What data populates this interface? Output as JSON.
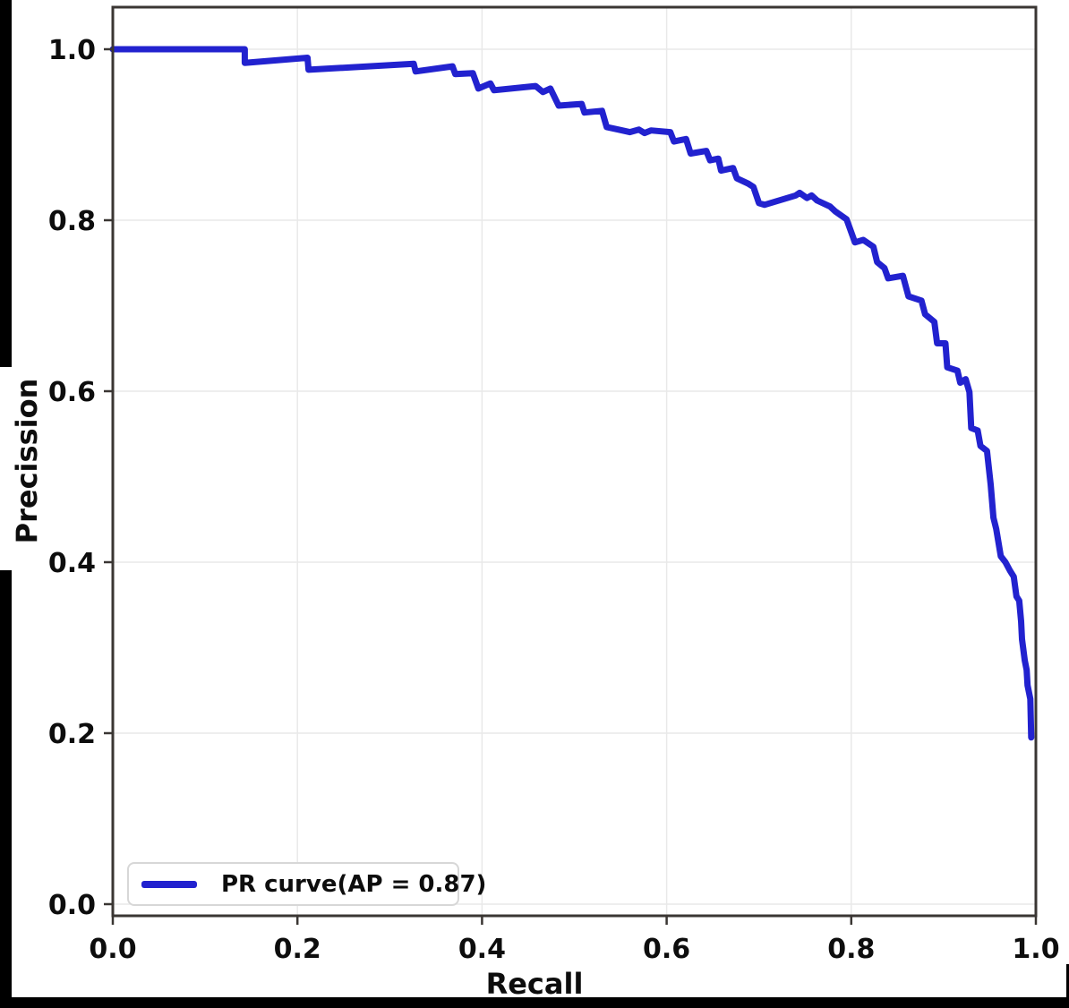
{
  "chart_data": {
    "type": "line",
    "title": "",
    "xlabel": "Recall",
    "ylabel": "Precission",
    "xlim": [
      0.0,
      1.0
    ],
    "ylim": [
      0.0,
      1.05
    ],
    "x_ticks": [
      "0.0",
      "0.2",
      "0.4",
      "0.6",
      "0.8",
      "1.0"
    ],
    "y_ticks": [
      "0.0",
      "0.2",
      "0.4",
      "0.6",
      "0.8",
      "1.0"
    ],
    "grid": true,
    "legend": {
      "position": "lower left",
      "label": "PR curve(AP = 0.87)"
    },
    "series": [
      {
        "name": "PR curve",
        "ap": 0.87,
        "color": "#2222cf",
        "points": [
          [
            0.0,
            1.0
          ],
          [
            0.143,
            1.0
          ],
          [
            0.143,
            0.984
          ],
          [
            0.211,
            0.99
          ],
          [
            0.212,
            0.976
          ],
          [
            0.326,
            0.983
          ],
          [
            0.328,
            0.974
          ],
          [
            0.368,
            0.98
          ],
          [
            0.371,
            0.971
          ],
          [
            0.39,
            0.972
          ],
          [
            0.396,
            0.954
          ],
          [
            0.409,
            0.96
          ],
          [
            0.413,
            0.952
          ],
          [
            0.458,
            0.957
          ],
          [
            0.466,
            0.95
          ],
          [
            0.474,
            0.954
          ],
          [
            0.483,
            0.934
          ],
          [
            0.508,
            0.936
          ],
          [
            0.511,
            0.926
          ],
          [
            0.53,
            0.928
          ],
          [
            0.535,
            0.909
          ],
          [
            0.548,
            0.906
          ],
          [
            0.56,
            0.903
          ],
          [
            0.57,
            0.906
          ],
          [
            0.576,
            0.902
          ],
          [
            0.583,
            0.905
          ],
          [
            0.604,
            0.903
          ],
          [
            0.608,
            0.892
          ],
          [
            0.621,
            0.895
          ],
          [
            0.626,
            0.878
          ],
          [
            0.643,
            0.881
          ],
          [
            0.647,
            0.87
          ],
          [
            0.656,
            0.872
          ],
          [
            0.659,
            0.858
          ],
          [
            0.672,
            0.861
          ],
          [
            0.676,
            0.849
          ],
          [
            0.688,
            0.843
          ],
          [
            0.694,
            0.839
          ],
          [
            0.7,
            0.82
          ],
          [
            0.706,
            0.818
          ],
          [
            0.74,
            0.829
          ],
          [
            0.744,
            0.832
          ],
          [
            0.752,
            0.826
          ],
          [
            0.757,
            0.829
          ],
          [
            0.763,
            0.823
          ],
          [
            0.777,
            0.816
          ],
          [
            0.783,
            0.81
          ],
          [
            0.795,
            0.801
          ],
          [
            0.804,
            0.774
          ],
          [
            0.813,
            0.777
          ],
          [
            0.824,
            0.769
          ],
          [
            0.828,
            0.751
          ],
          [
            0.836,
            0.744
          ],
          [
            0.84,
            0.732
          ],
          [
            0.856,
            0.735
          ],
          [
            0.862,
            0.711
          ],
          [
            0.876,
            0.706
          ],
          [
            0.88,
            0.69
          ],
          [
            0.89,
            0.681
          ],
          [
            0.893,
            0.656
          ],
          [
            0.902,
            0.656
          ],
          [
            0.904,
            0.628
          ],
          [
            0.915,
            0.624
          ],
          [
            0.918,
            0.61
          ],
          [
            0.924,
            0.614
          ],
          [
            0.928,
            0.599
          ],
          [
            0.93,
            0.557
          ],
          [
            0.937,
            0.554
          ],
          [
            0.94,
            0.536
          ],
          [
            0.947,
            0.53
          ],
          [
            0.951,
            0.491
          ],
          [
            0.954,
            0.452
          ],
          [
            0.957,
            0.439
          ],
          [
            0.962,
            0.407
          ],
          [
            0.967,
            0.4
          ],
          [
            0.972,
            0.39
          ],
          [
            0.976,
            0.383
          ],
          [
            0.979,
            0.36
          ],
          [
            0.982,
            0.355
          ],
          [
            0.984,
            0.331
          ],
          [
            0.985,
            0.31
          ],
          [
            0.988,
            0.285
          ],
          [
            0.99,
            0.274
          ],
          [
            0.991,
            0.256
          ],
          [
            0.994,
            0.24
          ],
          [
            0.995,
            0.195
          ]
        ]
      }
    ]
  },
  "colors": {
    "curve": "#2222cf",
    "frame": "#3a3633",
    "grid": "#e9e9e9",
    "tick": "#3a3633",
    "text": "#0d0d0d",
    "legend_border": "#d7d7d7",
    "background": "#ffffff",
    "artifact": "#000000"
  }
}
